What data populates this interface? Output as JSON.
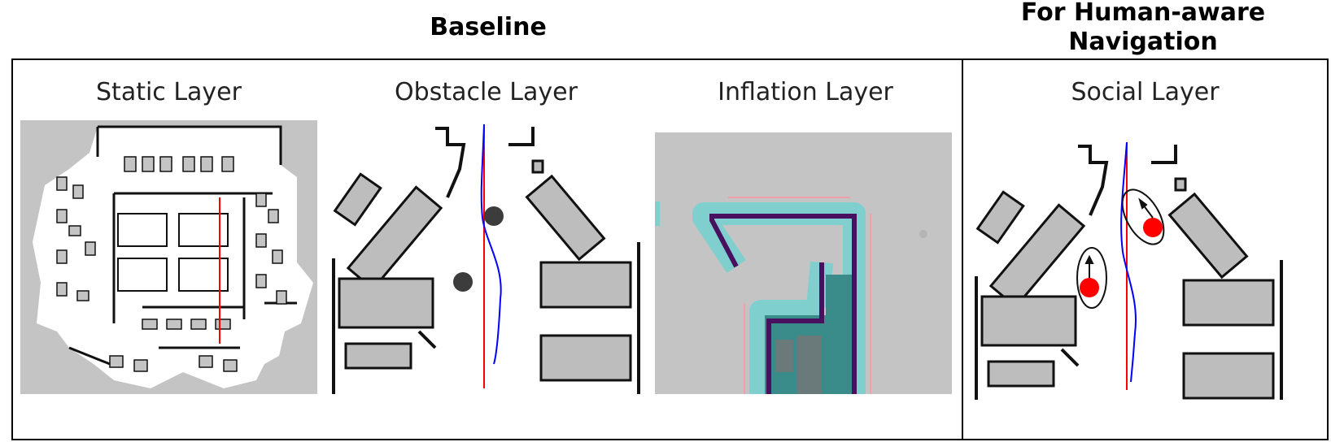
{
  "headers": {
    "baseline": "Baseline",
    "human_aware": "For Human-aware Navigation"
  },
  "panels": [
    {
      "title": "Static Layer"
    },
    {
      "title": "Obstacle Layer"
    },
    {
      "title": "Inflation Layer"
    },
    {
      "title": "Social Layer"
    }
  ],
  "colors": {
    "map_gray": "#c4c4c4",
    "free_space": "#ffffff",
    "wall": "#111111",
    "obstacle_gray": "#bdbdbd",
    "global_path": "#ff0000",
    "local_path": "#0000ff",
    "human_dot": "#3c3c3c",
    "social_human": "#ff0000",
    "inflation_cyan": "#7fcfcf",
    "inflation_teal": "#3a8c8a",
    "inflation_purple": "#4a1060",
    "inflation_pink": "#f0a0a8"
  }
}
